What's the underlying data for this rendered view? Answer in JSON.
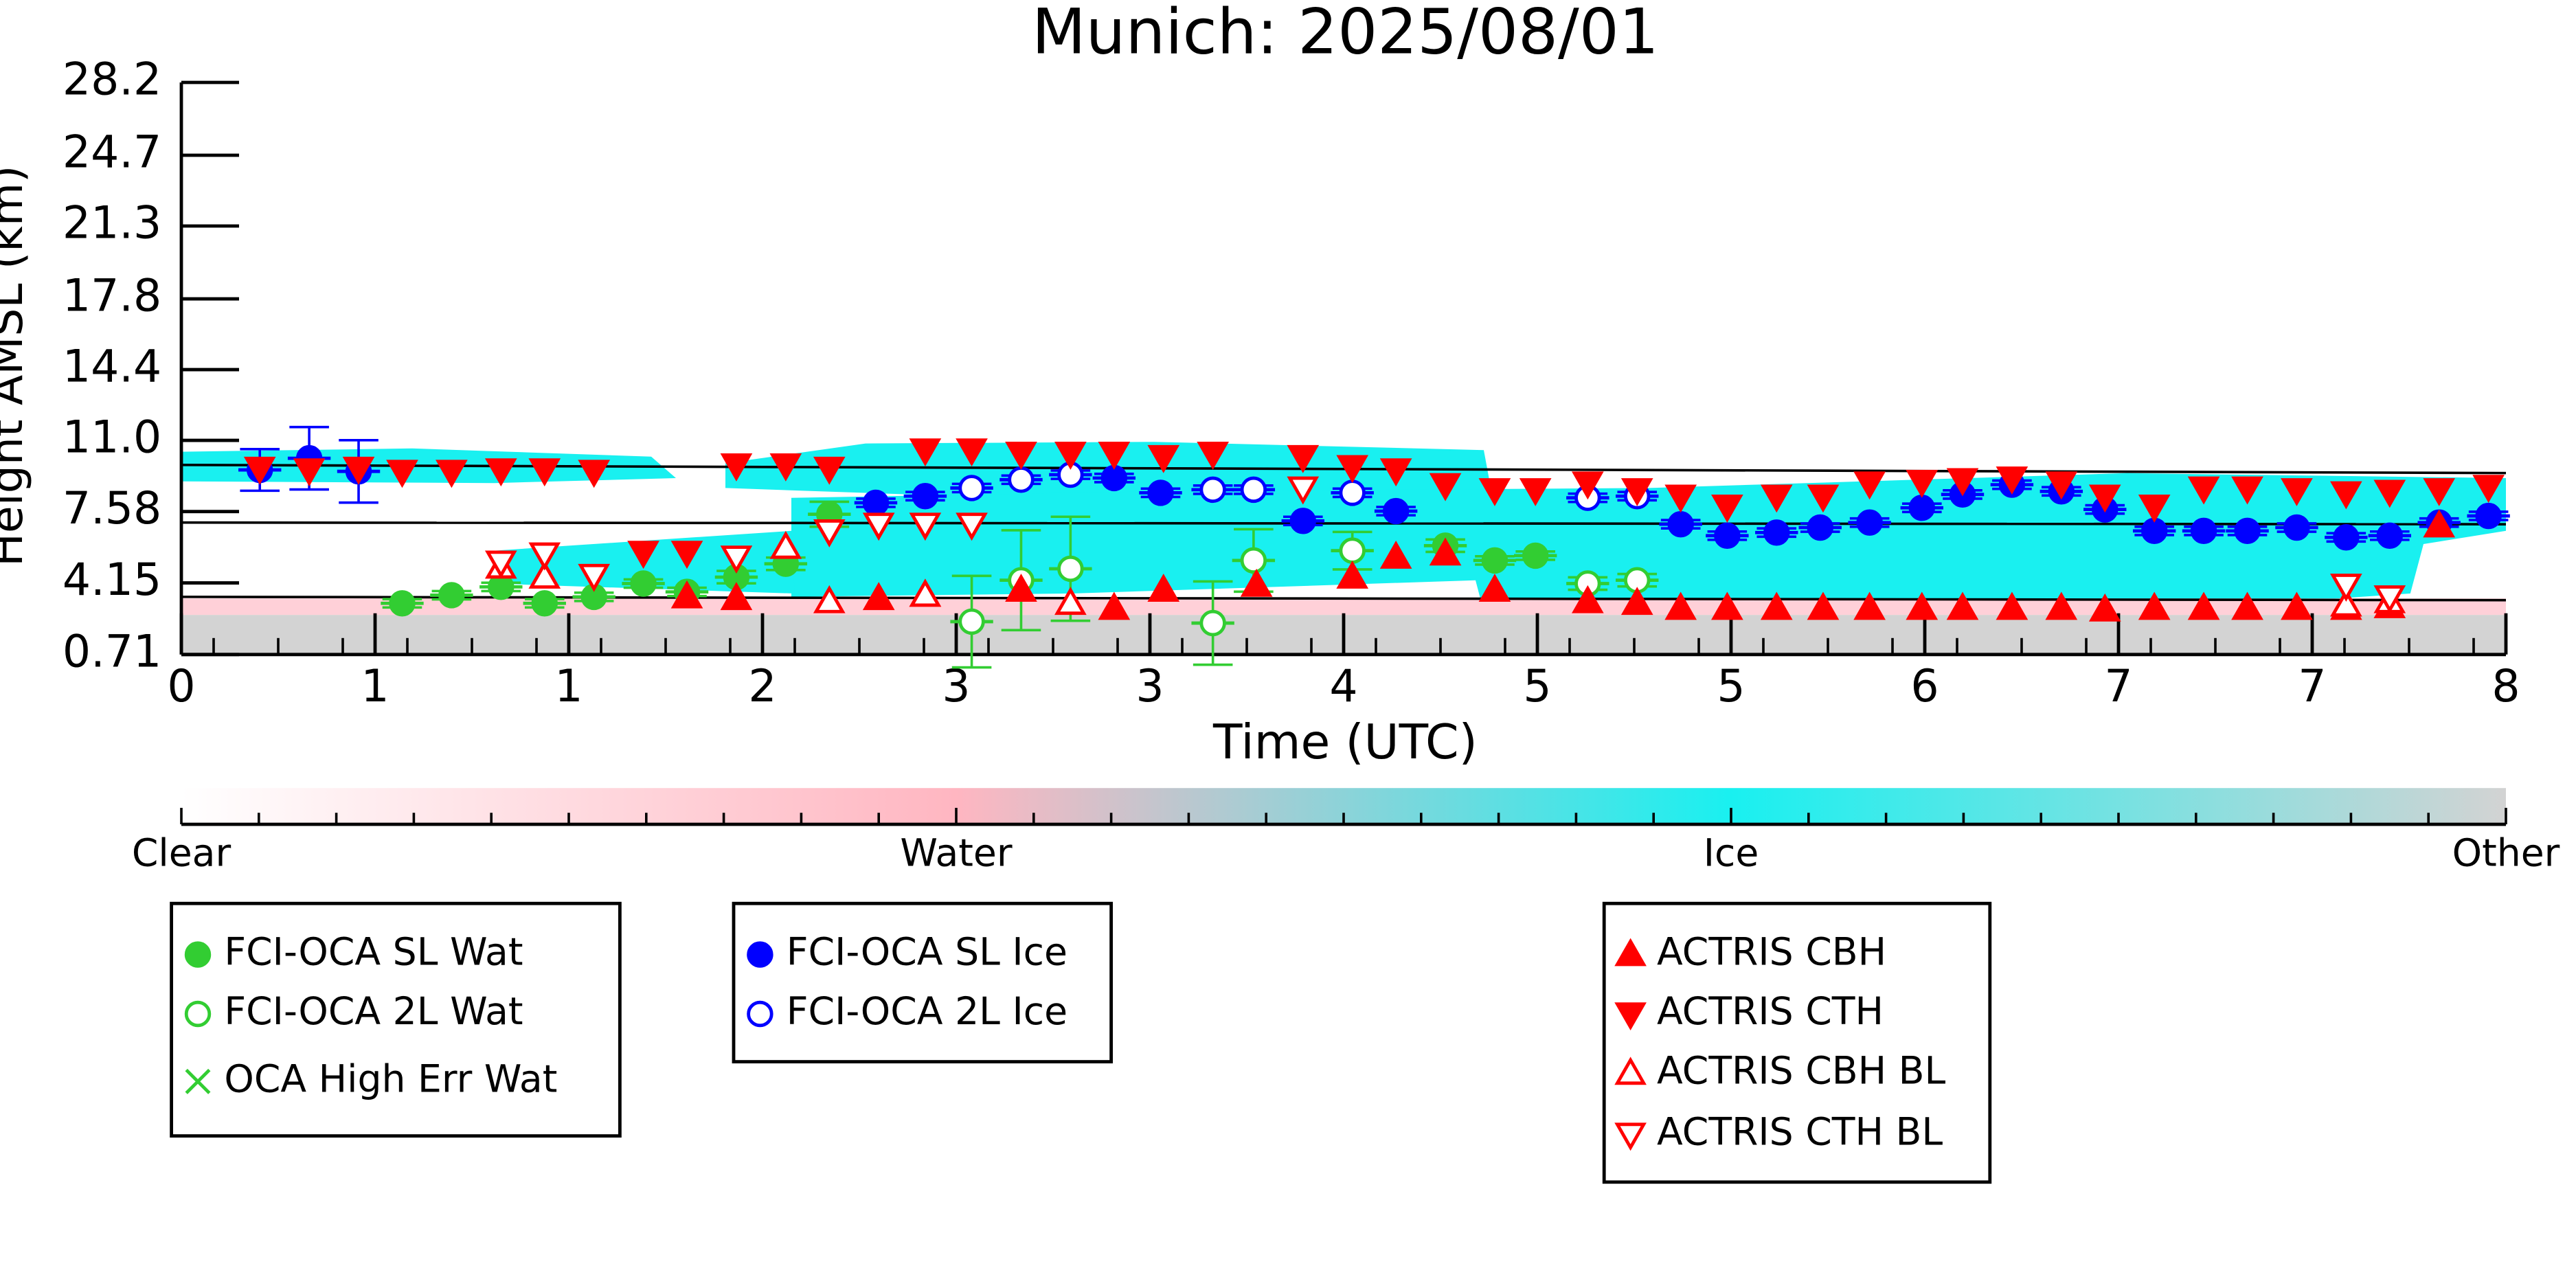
{
  "chart_data": {
    "type": "scatter",
    "title": "Munich: 2025/08/01",
    "xlabel": "Time (UTC)",
    "ylabel": "Height AMSL (km)",
    "xlim": [
      0,
      8
    ],
    "ylim": [
      0.71,
      28.2
    ],
    "xticks": [
      0,
      {
        "value": 0.6667,
        "label": "1"
      },
      {
        "value": 1.3333,
        "label": "1"
      },
      2,
      {
        "value": 2.6667,
        "label": "3"
      },
      {
        "value": 3.3333,
        "label": "3"
      },
      4,
      {
        "value": 4.6667,
        "label": "5"
      },
      {
        "value": 5.3333,
        "label": "5"
      },
      6,
      {
        "value": 6.6667,
        "label": "7"
      },
      {
        "value": 7.3333,
        "label": "7"
      },
      8
    ],
    "yticks": [
      0.71,
      4.15,
      7.58,
      {
        "value": 11,
        "label": "11.0"
      },
      14.4,
      17.8,
      21.3,
      24.7,
      28.2
    ],
    "reference_lines": [
      {
        "x": [
          0,
          8
        ],
        "values": [
          9.82,
          9.43
        ]
      },
      {
        "x": [
          0,
          8
        ],
        "values": [
          7.05,
          6.97
        ]
      },
      {
        "x": [
          0,
          8
        ],
        "values": [
          3.48,
          3.32
        ]
      }
    ],
    "colorbar": {
      "labels": [
        "Clear",
        "Water",
        "Ice",
        "Other"
      ],
      "colors": [
        "#ffffff",
        "#ffb6c1",
        "#19f0f0",
        "#d3d3d3"
      ]
    },
    "series": [
      {
        "name": "FCI-OCA SL Wat",
        "color": "#32cd32",
        "marker": "o",
        "filled": true,
        "x": [
          0.76,
          0.93,
          1.1,
          1.25,
          1.42,
          1.59,
          1.74,
          1.91,
          2.08,
          2.23,
          4.35,
          4.52,
          4.66
        ],
        "values": [
          3.17,
          3.56,
          3.96,
          3.17,
          3.48,
          4.12,
          3.72,
          4.43,
          5.07,
          7.45,
          5.94,
          5.23,
          5.46
        ],
        "errors": [
          0.2,
          0.2,
          0.2,
          0.2,
          0.2,
          0.2,
          0.2,
          0.3,
          0.3,
          0.6,
          0.3,
          0.2,
          0.2
        ]
      },
      {
        "name": "FCI-OCA 2L Wat",
        "color": "#32cd32",
        "marker": "o",
        "filled": false,
        "x": [
          2.72,
          2.89,
          3.06,
          3.55,
          3.69,
          4.03,
          4.84,
          5.01
        ],
        "values": [
          2.29,
          4.28,
          4.83,
          2.22,
          5.23,
          5.7,
          4.12,
          4.28
        ],
        "errors": [
          2.2,
          2.4,
          2.5,
          2.0,
          1.5,
          0.9,
          0.3,
          0.3
        ]
      },
      {
        "name": "OCA High Err Wat",
        "color": "#32cd32",
        "marker": "x",
        "filled": true,
        "x": [],
        "values": []
      },
      {
        "name": "FCI-OCA SL Ice",
        "color": "#0000ff",
        "marker": "o",
        "filled": true,
        "x": [
          0.27,
          0.44,
          0.61,
          2.39,
          2.56,
          3.21,
          3.37,
          3.86,
          4.18,
          5.16,
          5.32,
          5.49,
          5.64,
          5.81,
          5.99,
          6.13,
          6.3,
          6.47,
          6.62,
          6.79,
          6.96,
          7.11,
          7.28,
          7.45,
          7.6,
          7.77,
          7.94
        ],
        "values": [
          9.58,
          10.14,
          9.51,
          8.0,
          8.32,
          9.19,
          8.48,
          7.13,
          7.6,
          6.97,
          6.42,
          6.57,
          6.81,
          7.05,
          7.76,
          8.4,
          8.87,
          8.55,
          7.68,
          6.65,
          6.65,
          6.65,
          6.81,
          6.34,
          6.42,
          7.05,
          7.37
        ],
        "errors": [
          1.0,
          1.5,
          1.5,
          0.2,
          0.2,
          0.2,
          0.2,
          0.2,
          0.2,
          0.2,
          0.2,
          0.2,
          0.2,
          0.2,
          0.2,
          0.2,
          0.2,
          0.2,
          0.2,
          0.2,
          0.2,
          0.2,
          0.2,
          0.2,
          0.2,
          0.2,
          0.2
        ]
      },
      {
        "name": "FCI-OCA 2L Ice",
        "color": "#0000ff",
        "marker": "o",
        "filled": false,
        "x": [
          2.72,
          2.89,
          3.06,
          3.55,
          3.69,
          4.03,
          4.84,
          5.01
        ],
        "values": [
          8.71,
          9.11,
          9.35,
          8.63,
          8.63,
          8.48,
          8.24,
          8.32
        ],
        "errors": [
          0.2,
          0.2,
          0.2,
          0.2,
          0.2,
          0.2,
          0.2,
          0.2
        ]
      },
      {
        "name": "ACTRIS CBH",
        "color": "#ff0000",
        "marker": "^",
        "filled": true,
        "x": [
          1.74,
          1.91,
          2.4,
          2.56,
          2.89,
          3.21,
          3.38,
          3.7,
          4.03,
          4.18,
          4.35,
          4.52,
          4.84,
          5.01,
          5.16,
          5.32,
          5.49,
          5.65,
          5.81,
          5.99,
          6.13,
          6.3,
          6.47,
          6.62,
          6.79,
          6.96,
          7.11,
          7.28,
          7.45,
          7.6,
          7.77
        ],
        "values": [
          3.48,
          3.4,
          3.4,
          3.56,
          3.8,
          2.93,
          3.8,
          4.04,
          4.43,
          5.39,
          5.54,
          3.8,
          3.25,
          3.17,
          2.93,
          2.93,
          2.93,
          2.93,
          2.93,
          2.93,
          2.93,
          2.93,
          2.93,
          2.85,
          2.93,
          2.93,
          2.93,
          2.93,
          2.93,
          3.01,
          6.89
        ]
      },
      {
        "name": "ACTRIS CTH",
        "color": "#ff0000",
        "marker": "v",
        "filled": true,
        "x": [
          0.27,
          0.44,
          0.61,
          0.76,
          0.93,
          1.1,
          1.25,
          1.42,
          1.59,
          1.74,
          1.91,
          2.08,
          2.23,
          2.56,
          2.72,
          2.89,
          3.06,
          3.21,
          3.38,
          3.55,
          3.86,
          4.03,
          4.18,
          4.35,
          4.52,
          4.66,
          4.84,
          5.01,
          5.16,
          5.32,
          5.49,
          5.65,
          5.81,
          5.99,
          6.13,
          6.3,
          6.47,
          6.62,
          6.79,
          6.96,
          7.11,
          7.28,
          7.45,
          7.6,
          7.77,
          7.94
        ],
        "values": [
          9.66,
          9.58,
          9.66,
          9.51,
          9.51,
          9.58,
          9.58,
          9.51,
          5.62,
          5.62,
          9.82,
          9.82,
          9.66,
          10.54,
          10.54,
          10.38,
          10.38,
          10.38,
          10.22,
          10.38,
          10.22,
          9.74,
          9.58,
          8.87,
          8.63,
          8.63,
          8.95,
          8.63,
          8.32,
          7.84,
          8.32,
          8.32,
          8.95,
          9.03,
          9.11,
          9.19,
          8.95,
          8.32,
          7.84,
          8.71,
          8.71,
          8.63,
          8.48,
          8.55,
          8.63,
          8.79
        ]
      },
      {
        "name": "ACTRIS CBH BL",
        "color": "#ff0000",
        "marker": "^",
        "filled": false,
        "x": [
          1.1,
          1.25,
          2.08,
          2.23,
          2.56,
          3.06,
          7.45,
          7.6
        ],
        "values": [
          4.91,
          4.43,
          5.86,
          3.25,
          3.56,
          3.17,
          3.09,
          3.25
        ]
      },
      {
        "name": "ACTRIS CTH BL",
        "color": "#ff0000",
        "marker": "v",
        "filled": false,
        "x": [
          1.1,
          1.25,
          1.42,
          1.91,
          2.23,
          2.4,
          2.56,
          2.72,
          3.86,
          7.45,
          7.6
        ],
        "values": [
          5.15,
          5.54,
          4.51,
          5.39,
          6.65,
          6.97,
          6.97,
          6.97,
          8.71,
          4.04,
          3.48
        ]
      }
    ]
  }
}
